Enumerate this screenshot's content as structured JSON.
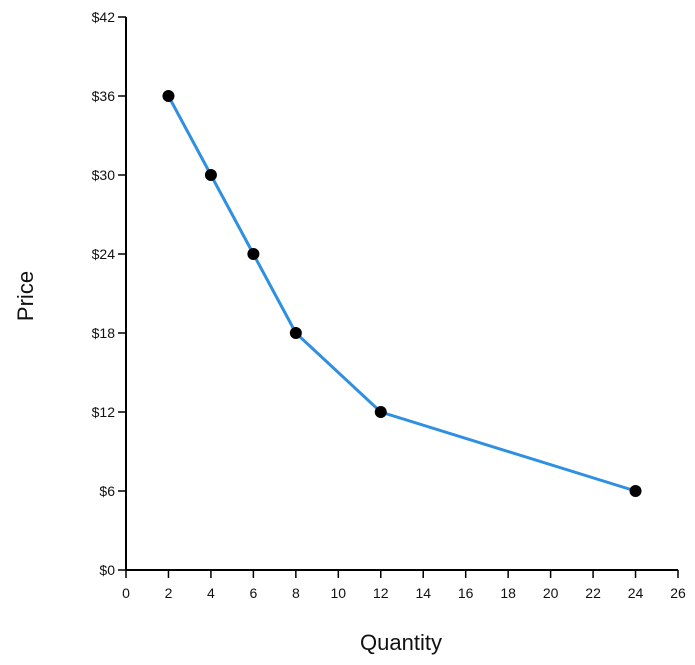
{
  "chart_data": {
    "type": "line",
    "title": "",
    "xlabel": "Quantity",
    "ylabel": "Price",
    "xlim": [
      0,
      26
    ],
    "ylim": [
      0,
      42
    ],
    "x_ticks": [
      0,
      2,
      4,
      6,
      8,
      10,
      12,
      14,
      16,
      18,
      20,
      22,
      24,
      26
    ],
    "y_ticks": [
      0,
      6,
      12,
      18,
      24,
      30,
      36,
      42
    ],
    "x_tick_labels": [
      "0",
      "2",
      "4",
      "6",
      "8",
      "10",
      "12",
      "14",
      "16",
      "18",
      "20",
      "22",
      "24",
      "26"
    ],
    "y_tick_labels": [
      "$0",
      "$6",
      "$12",
      "$18",
      "$24",
      "$30",
      "$36",
      "$42"
    ],
    "grid": false,
    "series": [
      {
        "points": [
          {
            "x": 2,
            "y": 36
          },
          {
            "x": 4,
            "y": 30
          },
          {
            "x": 6,
            "y": 24
          },
          {
            "x": 8,
            "y": 18
          },
          {
            "x": 12,
            "y": 12
          },
          {
            "x": 24,
            "y": 6
          }
        ],
        "line_color": "#2f8fe0",
        "marker_color": "#000000"
      }
    ]
  }
}
